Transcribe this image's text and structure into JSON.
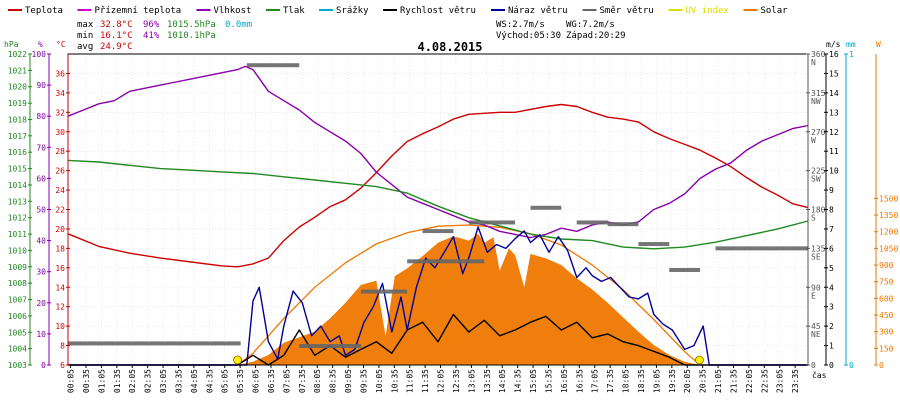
{
  "legend": [
    {
      "label": "Teplota",
      "color": "#cc0000"
    },
    {
      "label": "Přízemní teplota",
      "color": "#cc00cc"
    },
    {
      "label": "Vlhkost",
      "color": "#8800aa"
    },
    {
      "label": "Tlak",
      "color": "#228822"
    },
    {
      "label": "Srážky",
      "color": "#00aacc"
    },
    {
      "label": "Rychlost větru",
      "color": "#000000"
    },
    {
      "label": "Náraz větru",
      "color": "#000099"
    },
    {
      "label": "Směr větru",
      "color": "#666666"
    },
    {
      "label": "UV index",
      "color": "#dddd00"
    },
    {
      "label": "Solar",
      "color": "#ee7700"
    }
  ],
  "stats": {
    "max_label": "max",
    "max_temp": "32.8°C",
    "max_hum": "96%",
    "max_press": "1015.5hPa",
    "max_rain": "0.0mm",
    "min_label": "min",
    "min_temp": "16.1°C",
    "min_hum": "41%",
    "min_press": "1010.1hPa",
    "avg_label": "avg",
    "avg_temp": "24.9°C",
    "ws": "WS:2.7m/s",
    "wg": "WG:7.2m/s",
    "sunrise": "Východ:05:30",
    "sunset": "Západ:20:29"
  },
  "units": {
    "hpa": "hPa",
    "pct": "%",
    "degc": "°C",
    "ms": "m/s",
    "mm": "mm",
    "w": "W",
    "time": "čas"
  },
  "chart_data": {
    "type": "line",
    "title": "4.08.2015",
    "x_ticks": [
      "00:05",
      "00:35",
      "01:05",
      "01:35",
      "02:05",
      "02:35",
      "03:05",
      "03:35",
      "04:05",
      "04:35",
      "05:05",
      "05:35",
      "06:05",
      "06:35",
      "07:05",
      "07:35",
      "08:05",
      "08:35",
      "09:05",
      "09:35",
      "10:05",
      "10:35",
      "11:05",
      "11:35",
      "12:05",
      "12:35",
      "13:05",
      "13:35",
      "14:05",
      "14:35",
      "15:05",
      "15:35",
      "16:05",
      "16:35",
      "17:05",
      "17:35",
      "18:05",
      "18:35",
      "19:05",
      "19:35",
      "20:05",
      "20:35",
      "21:05",
      "21:35",
      "22:05",
      "22:35",
      "23:05",
      "23:35"
    ],
    "x_range_hours": [
      0,
      24
    ],
    "axes": {
      "pressure_hpa": {
        "min": 1003,
        "max": 1022,
        "ticks": [
          1003,
          1004,
          1005,
          1006,
          1007,
          1008,
          1009,
          1010,
          1011,
          1012,
          1013,
          1014,
          1015,
          1016,
          1017,
          1018,
          1019,
          1020,
          1021,
          1022
        ]
      },
      "humidity_pct": {
        "min": 0,
        "max": 100,
        "ticks": [
          0,
          10,
          20,
          30,
          40,
          50,
          60,
          70,
          80,
          90,
          100
        ]
      },
      "temperature_c": {
        "min": 6,
        "max": 38,
        "ticks": [
          6,
          8,
          10,
          12,
          14,
          16,
          18,
          20,
          22,
          24,
          26,
          28,
          30,
          32,
          34,
          36
        ]
      },
      "direction_deg": {
        "min": 0,
        "max": 360,
        "ticks": [
          0,
          45,
          90,
          135,
          180,
          225,
          270,
          315,
          360
        ],
        "labels": [
          "",
          "NE",
          "E",
          "SE",
          "S",
          "SW",
          "W",
          "NW",
          "N"
        ]
      },
      "wind_ms": {
        "min": 0,
        "max": 16,
        "ticks": [
          0,
          1,
          2,
          3,
          4,
          5,
          6,
          7,
          8,
          9,
          10,
          11,
          12,
          13,
          14,
          15,
          16
        ]
      },
      "rain_mm": {
        "min": 0,
        "max": 1,
        "ticks": [
          0,
          1
        ]
      },
      "solar_w": {
        "min": 0,
        "max": 2800,
        "ticks": [
          0,
          150,
          300,
          450,
          600,
          750,
          900,
          1050,
          1200,
          1350,
          1500
        ]
      }
    },
    "series": [
      {
        "name": "Teplota",
        "axis": "temperature_c",
        "color": "#cc0000",
        "x": [
          0,
          1,
          2,
          3,
          4,
          5,
          5.5,
          6,
          6.5,
          7,
          7.5,
          8,
          8.5,
          9,
          9.5,
          10,
          10.5,
          11,
          11.5,
          12,
          12.5,
          13,
          13.5,
          14,
          14.5,
          15,
          15.5,
          16,
          16.5,
          17,
          17.5,
          18,
          18.5,
          19,
          19.5,
          20,
          20.5,
          21,
          21.5,
          22,
          22.5,
          23,
          23.5,
          24
        ],
        "y": [
          19.5,
          18.2,
          17.5,
          17,
          16.6,
          16.2,
          16.1,
          16.4,
          17,
          18.8,
          20.2,
          21.2,
          22.3,
          23,
          24.2,
          25.8,
          27.5,
          29,
          29.8,
          30.5,
          31.3,
          31.8,
          31.9,
          32,
          32,
          32.3,
          32.6,
          32.8,
          32.6,
          32,
          31.5,
          31.3,
          31,
          30,
          29.3,
          28.7,
          28.1,
          27.3,
          26.4,
          25.3,
          24.3,
          23.5,
          22.6,
          22.2
        ]
      },
      {
        "name": "Vlhkost",
        "axis": "humidity_pct",
        "color": "#8800aa",
        "x": [
          0,
          0.5,
          1,
          1.5,
          2,
          2.5,
          3,
          3.5,
          4,
          4.5,
          5,
          5.5,
          5.75,
          6,
          6.5,
          7,
          7.5,
          8,
          8.5,
          9,
          9.5,
          10,
          10.5,
          11,
          11.5,
          12,
          12.5,
          13,
          13.5,
          14,
          14.5,
          15,
          15.5,
          16,
          16.5,
          17,
          17.5,
          18,
          18.5,
          19,
          19.5,
          20,
          20.5,
          21,
          21.5,
          22,
          22.5,
          23,
          23.5,
          24
        ],
        "y": [
          80,
          82,
          84,
          85,
          88,
          89,
          90,
          91,
          92,
          93,
          94,
          95,
          96,
          95,
          88,
          85,
          82,
          78,
          75,
          72,
          68,
          62,
          58,
          54,
          52,
          50,
          48,
          46,
          45,
          43,
          42,
          41,
          42,
          44,
          43,
          45,
          46,
          45,
          46,
          50,
          52,
          55,
          60,
          63,
          65,
          69,
          72,
          74,
          76,
          77
        ]
      },
      {
        "name": "Tlak",
        "axis": "pressure_hpa",
        "color": "#228822",
        "x": [
          0,
          1,
          2,
          3,
          4,
          5,
          6,
          7,
          8,
          9,
          10,
          11,
          12,
          13,
          14,
          15,
          16,
          17,
          18,
          19,
          20,
          21,
          22,
          23,
          24
        ],
        "y": [
          1015.5,
          1015.4,
          1015.2,
          1015,
          1014.9,
          1014.8,
          1014.7,
          1014.5,
          1014.3,
          1014.1,
          1013.9,
          1013.5,
          1012.7,
          1012,
          1011.5,
          1011,
          1010.7,
          1010.6,
          1010.2,
          1010.1,
          1010.2,
          1010.5,
          1010.9,
          1011.3,
          1011.8
        ]
      },
      {
        "name": "Rychlost větru",
        "axis": "wind_ms",
        "color": "#000000",
        "x": [
          0,
          5.5,
          6,
          6.5,
          7,
          7.5,
          8,
          8.5,
          9,
          9.5,
          10,
          10.5,
          11,
          11.5,
          12,
          12.5,
          13,
          13.5,
          14,
          14.5,
          15,
          15.5,
          16,
          16.5,
          17,
          17.5,
          18,
          18.5,
          19,
          19.5,
          20,
          24
        ],
        "y": [
          0,
          0,
          0.5,
          0,
          0.5,
          1.8,
          0.5,
          1,
          0.4,
          0.8,
          1.2,
          0.6,
          1.8,
          2.2,
          1.2,
          2.6,
          1.7,
          2.3,
          1.5,
          1.8,
          2.2,
          2.5,
          1.8,
          2.2,
          1.4,
          1.6,
          1.2,
          1,
          0.7,
          0.4,
          0,
          0
        ]
      },
      {
        "name": "Náraz větru",
        "axis": "wind_ms",
        "color": "#000099",
        "x": [
          0,
          5.6,
          5.8,
          6,
          6.2,
          6.5,
          6.8,
          7,
          7.3,
          7.6,
          7.9,
          8.2,
          8.5,
          8.8,
          9,
          9.3,
          9.6,
          9.9,
          10.2,
          10.5,
          10.8,
          11,
          11.3,
          11.6,
          11.9,
          12.2,
          12.5,
          12.8,
          13,
          13.3,
          13.6,
          13.9,
          14.2,
          14.5,
          14.8,
          15,
          15.3,
          15.6,
          15.9,
          16.2,
          16.5,
          16.8,
          17,
          17.3,
          17.6,
          17.9,
          18.2,
          18.5,
          18.8,
          19,
          19.3,
          19.6,
          20,
          20.3,
          20.6,
          20.8,
          24
        ],
        "y": [
          0,
          0,
          0,
          3.3,
          4,
          1.2,
          0.3,
          2,
          3.8,
          3.2,
          1.5,
          2,
          1.2,
          1.5,
          0.5,
          0.8,
          2.2,
          3,
          4.2,
          1.7,
          3.5,
          1.8,
          4,
          5.5,
          5,
          5.8,
          6.6,
          4.7,
          5.5,
          7.1,
          5.8,
          6.2,
          6,
          6.5,
          6.9,
          6.3,
          6.7,
          5.8,
          6.6,
          5.9,
          4.5,
          5,
          4.6,
          4.3,
          4.5,
          4,
          3.5,
          3.4,
          3.7,
          2.6,
          2.1,
          1.8,
          0.8,
          1,
          2,
          0,
          0
        ]
      },
      {
        "name": "Solar",
        "axis": "solar_w",
        "color": "#ee7700",
        "style": "area",
        "x": [
          0,
          5.5,
          6,
          6.5,
          7,
          7.5,
          8,
          8.5,
          9,
          9.5,
          10,
          10.3,
          10.6,
          11,
          11.5,
          12,
          12.5,
          13,
          13.3,
          13.5,
          13.8,
          14,
          14.3,
          14.5,
          14.8,
          15,
          15.5,
          16,
          16.5,
          17,
          17.5,
          18,
          18.5,
          19,
          19.5,
          20,
          20.5,
          24
        ],
        "y": [
          0,
          0,
          30,
          90,
          200,
          250,
          300,
          420,
          560,
          720,
          760,
          260,
          800,
          870,
          980,
          1100,
          1160,
          1120,
          1180,
          1100,
          1150,
          850,
          1050,
          990,
          700,
          1000,
          960,
          900,
          780,
          680,
          560,
          430,
          300,
          180,
          90,
          30,
          0,
          0
        ]
      },
      {
        "name": "Solar clear sky",
        "axis": "solar_w",
        "color": "#ee7700",
        "style": "line",
        "x": [
          5.5,
          6,
          7,
          8,
          9,
          10,
          11,
          12,
          13,
          14,
          15,
          16,
          17,
          18,
          19,
          20,
          20.5
        ],
        "y": [
          0,
          105,
          420,
          700,
          920,
          1090,
          1190,
          1250,
          1260,
          1240,
          1180,
          1080,
          900,
          680,
          410,
          120,
          0
        ]
      }
    ],
    "wind_direction": {
      "axis": "direction_deg",
      "segments": [
        {
          "x0": 0,
          "x1": 5.6,
          "deg": 25
        },
        {
          "x0": 5.8,
          "x1": 7.5,
          "deg": 347
        },
        {
          "x0": 7.5,
          "x1": 9.5,
          "deg": 22
        },
        {
          "x0": 9.5,
          "x1": 11,
          "deg": 85
        },
        {
          "x0": 11,
          "x1": 13.5,
          "deg": 120
        },
        {
          "x0": 11.5,
          "x1": 12.5,
          "deg": 155
        },
        {
          "x0": 13,
          "x1": 14.5,
          "deg": 165
        },
        {
          "x0": 15,
          "x1": 16,
          "deg": 182
        },
        {
          "x0": 16.5,
          "x1": 17.5,
          "deg": 165
        },
        {
          "x0": 17.5,
          "x1": 18.5,
          "deg": 163
        },
        {
          "x0": 18.5,
          "x1": 19.5,
          "deg": 140
        },
        {
          "x0": 19.5,
          "x1": 20.5,
          "deg": 110
        },
        {
          "x0": 21,
          "x1": 24,
          "deg": 135
        }
      ]
    },
    "sun_markers_hours": [
      5.5,
      20.48
    ]
  }
}
